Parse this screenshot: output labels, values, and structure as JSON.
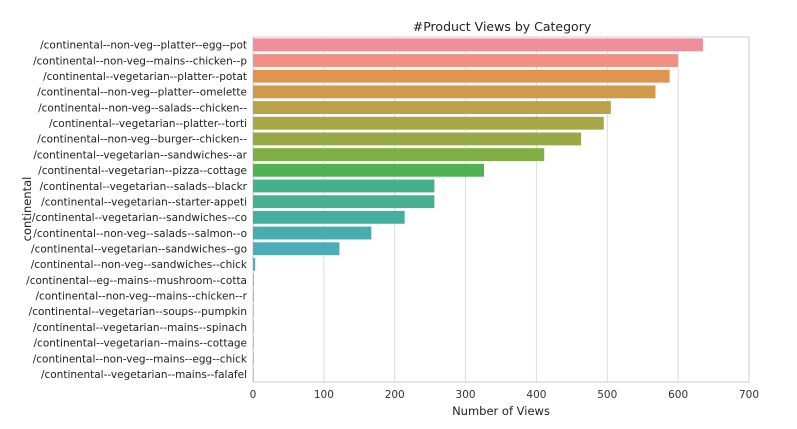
{
  "chart_data": {
    "type": "bar",
    "orientation": "horizontal",
    "title": "#Product Views by Category",
    "xlabel": "Number of Views",
    "ylabel": "continental",
    "xlim": [
      0,
      700
    ],
    "xticks": [
      0,
      100,
      200,
      300,
      400,
      500,
      600,
      700
    ],
    "grid": "vertical",
    "categories": [
      "/continental--non-veg--platter--egg--pot",
      "/continental--non-veg--mains--chicken--p",
      "/continental--vegetarian--platter--potat",
      "/continental--non-veg--platter--omelette",
      "/continental--non-veg--salads--chicken--",
      "/continental--vegetarian--platter--torti",
      "/continental--non-veg--burger--chicken--",
      "/continental--vegetarian--sandwiches--ar",
      "/continental--vegetarian--pizza--cottage",
      "/continental--vegetarian--salads--blackr",
      "/continental--vegetarian--starter-appeti",
      "/continental--vegetarian--sandwiches--co",
      "/continental--non-veg--salads--salmon--o",
      "/continental--vegetarian--sandwiches--go",
      "/continental--non-veg--sandwiches--chick",
      "/continental--eg--mains--mushroom--cotta",
      "/continental--non-veg--mains--chicken--r",
      "/continental--vegetarian--soups--pumpkin",
      "/continental--vegetarian--mains--spinach",
      "/continental--vegetarian--mains--cottage",
      "/continental--non-veg--mains--egg--chick",
      "/continental--vegetarian--mains--falafel"
    ],
    "values": [
      635,
      600,
      588,
      568,
      505,
      495,
      463,
      411,
      326,
      256,
      256,
      214,
      167,
      122,
      3,
      1,
      1,
      1,
      1,
      1,
      1,
      1
    ],
    "colors": [
      "#f08e99",
      "#ef9184",
      "#e19450",
      "#d09a4c",
      "#b9a24a",
      "#a9a647",
      "#97aa45",
      "#7fae45",
      "#4fb354",
      "#45b08a",
      "#47b093",
      "#46ae9f",
      "#48aead",
      "#4aadb8",
      "#4bacc4",
      "#55a8d4",
      "#74a1e0",
      "#9a98e8",
      "#ba8ee8",
      "#d284e0",
      "#e37ecc",
      "#ee86b3"
    ]
  }
}
